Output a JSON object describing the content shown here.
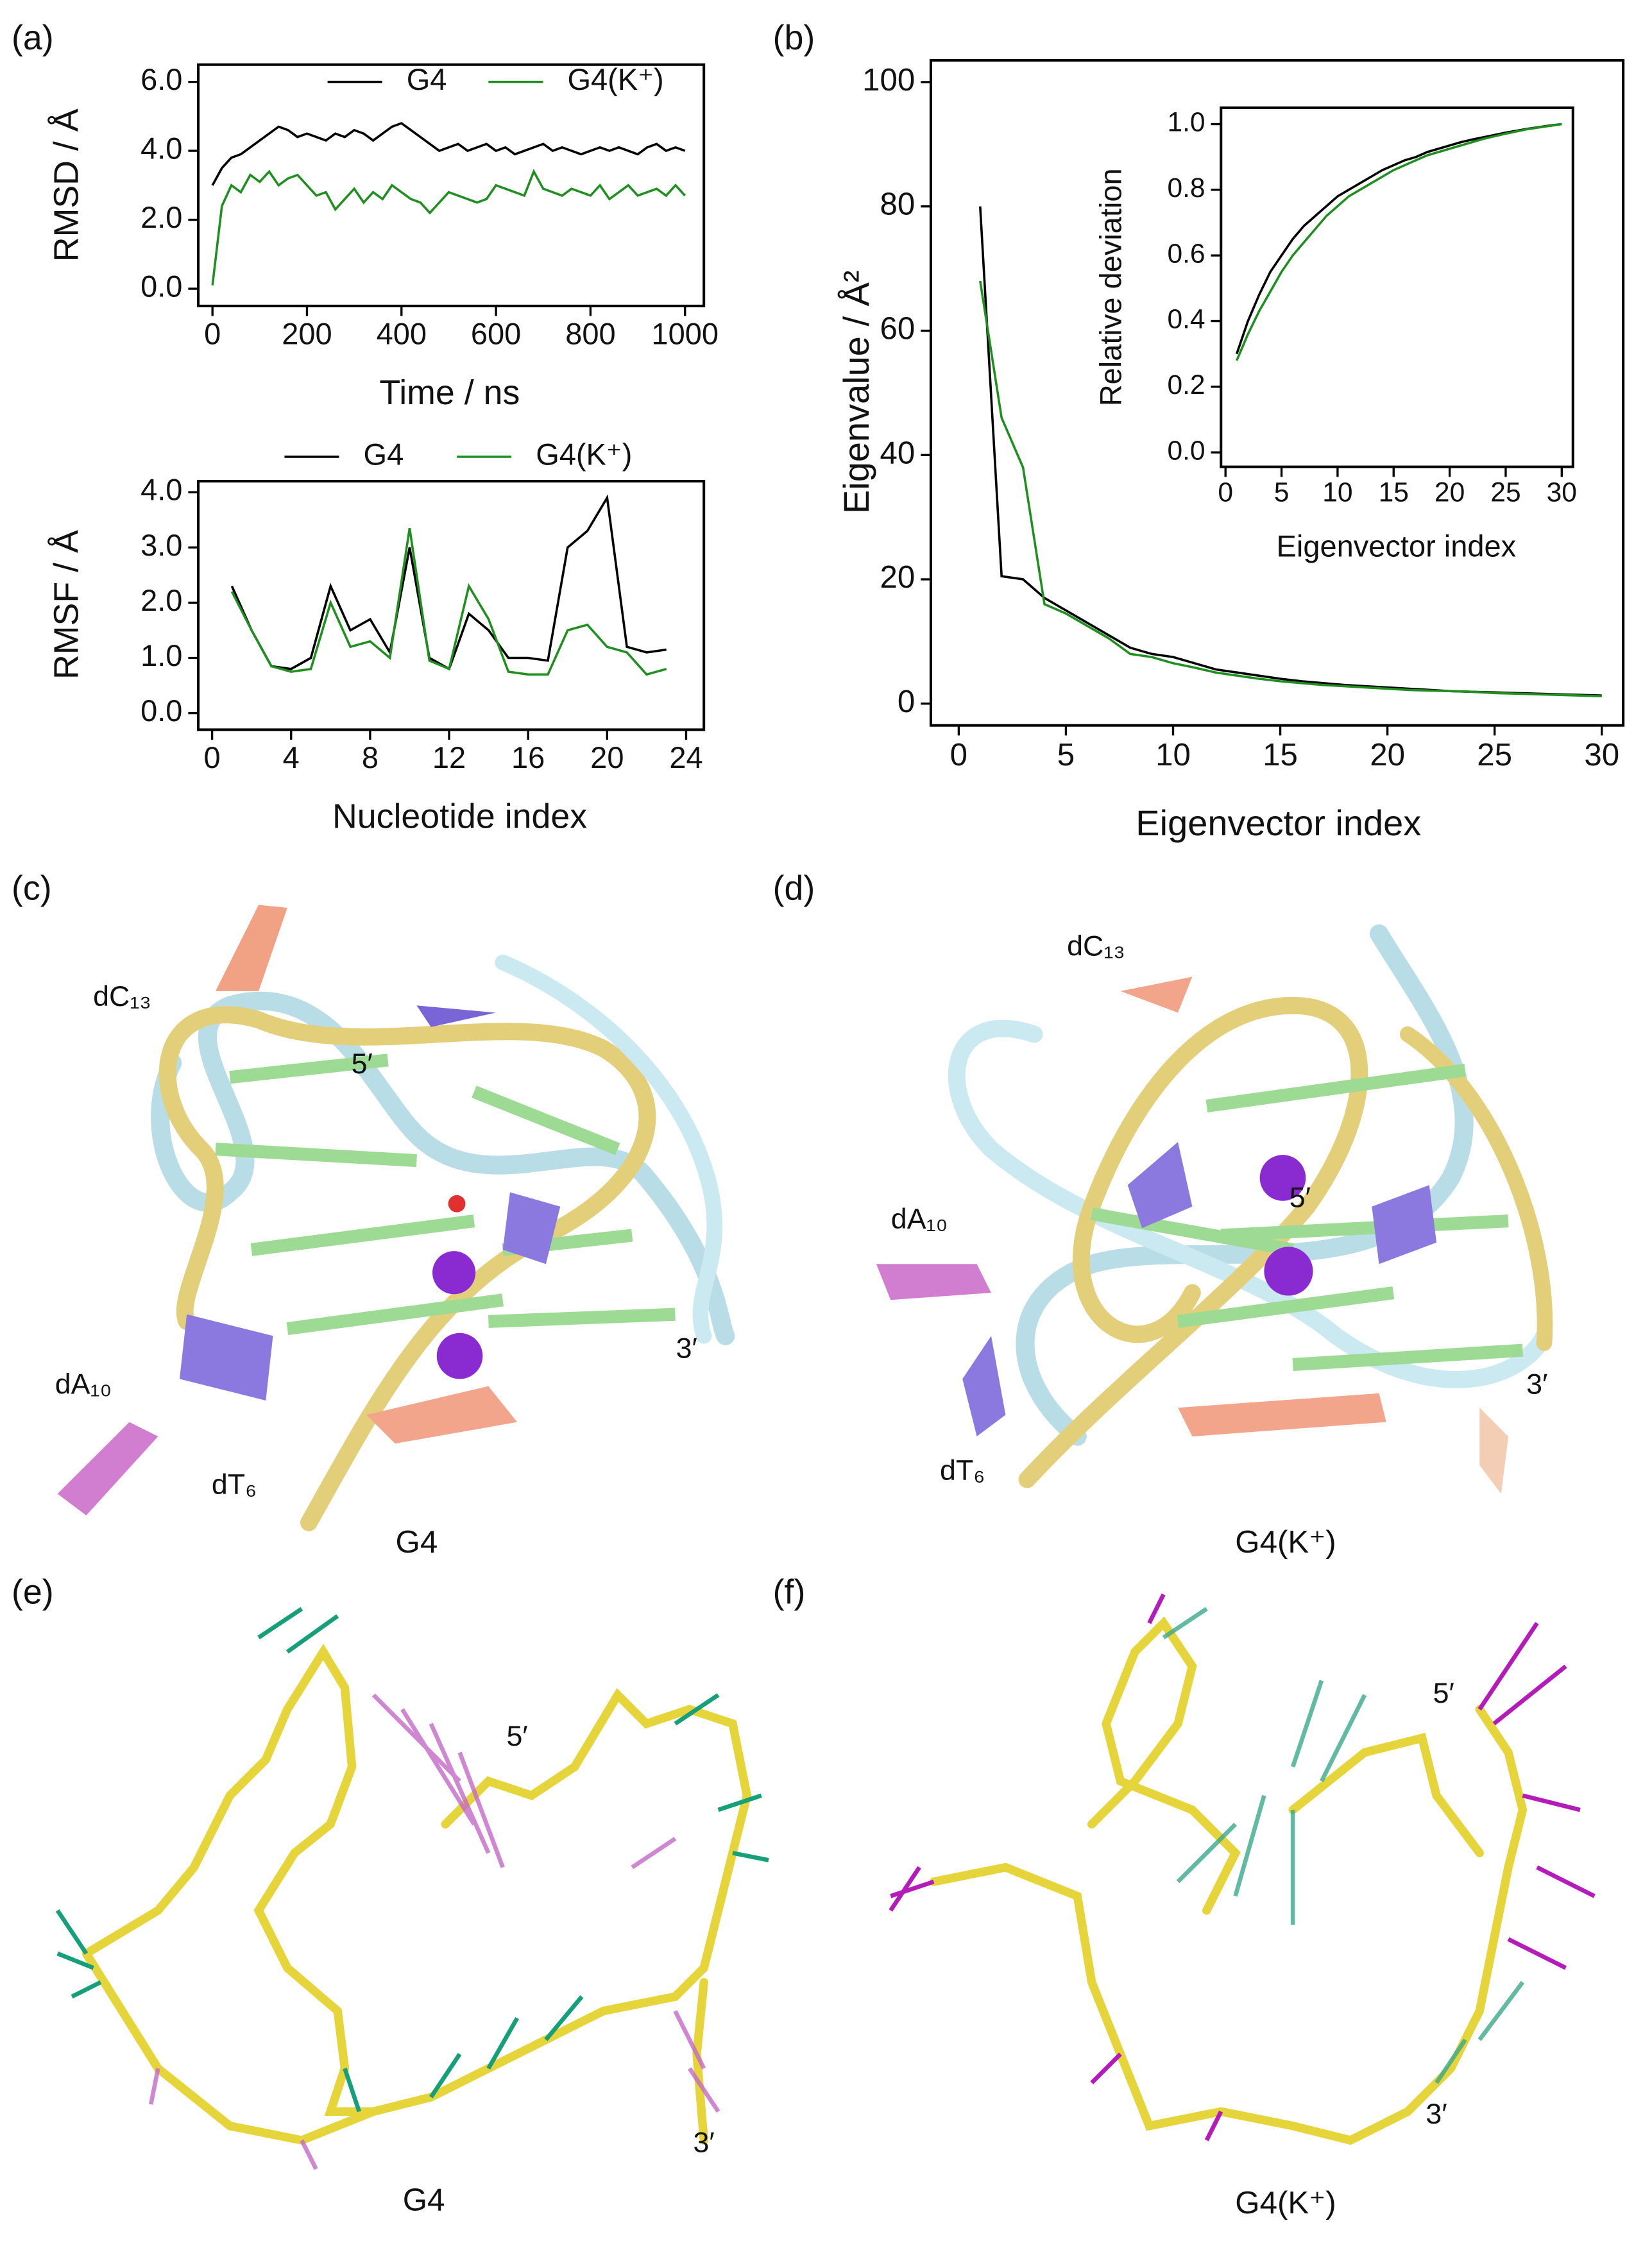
{
  "chart_data": [
    {
      "type": "line",
      "xlabel": "Time / ns",
      "ylabel": "RMSD / Å",
      "x": [
        0,
        20,
        40,
        60,
        80,
        100,
        120,
        140,
        160,
        180,
        200,
        220,
        240,
        260,
        280,
        300,
        320,
        340,
        360,
        380,
        400,
        420,
        440,
        460,
        480,
        500,
        520,
        540,
        560,
        580,
        600,
        620,
        640,
        660,
        680,
        700,
        720,
        740,
        760,
        780,
        800,
        820,
        840,
        860,
        880,
        900,
        920,
        940,
        960,
        980,
        1000
      ],
      "series": [
        {
          "name": "G4",
          "color": "#000000",
          "values": [
            3.0,
            3.5,
            3.8,
            3.9,
            4.1,
            4.3,
            4.5,
            4.7,
            4.6,
            4.4,
            4.5,
            4.4,
            4.3,
            4.5,
            4.4,
            4.6,
            4.5,
            4.3,
            4.5,
            4.7,
            4.8,
            4.6,
            4.4,
            4.2,
            4.0,
            4.1,
            4.2,
            4.0,
            4.1,
            4.2,
            4.0,
            4.1,
            3.9,
            4.0,
            4.1,
            4.2,
            4.0,
            4.1,
            4.0,
            3.9,
            4.0,
            4.1,
            4.0,
            4.1,
            4.0,
            3.9,
            4.1,
            4.2,
            4.0,
            4.1,
            4.0
          ]
        },
        {
          "name": "G4(K⁺)",
          "color": "#1f8f1f",
          "values": [
            0.1,
            2.4,
            3.0,
            2.8,
            3.3,
            3.1,
            3.4,
            3.0,
            3.2,
            3.3,
            3.0,
            2.7,
            2.8,
            2.3,
            2.6,
            2.9,
            2.5,
            2.8,
            2.6,
            3.0,
            2.8,
            2.6,
            2.5,
            2.2,
            2.5,
            2.8,
            2.7,
            2.6,
            2.5,
            2.6,
            3.0,
            2.9,
            2.8,
            2.7,
            3.4,
            2.9,
            2.8,
            2.7,
            2.9,
            2.8,
            2.7,
            3.0,
            2.6,
            2.8,
            3.0,
            2.7,
            2.8,
            2.9,
            2.7,
            3.0,
            2.7
          ]
        }
      ],
      "xlim": [
        -30,
        1040
      ],
      "xticks": [
        0,
        200,
        400,
        600,
        800,
        1000
      ],
      "ylim": [
        -0.5,
        6.5
      ],
      "yticks": [
        {
          "value": 0,
          "label": "0.0"
        },
        {
          "value": 2,
          "label": "2.0"
        },
        {
          "value": 4,
          "label": "4.0"
        },
        {
          "value": 6,
          "label": "6.0"
        }
      ]
    },
    {
      "type": "line",
      "xlabel": "Nucleotide index",
      "ylabel": "RMSF / Å",
      "x": [
        1,
        2,
        3,
        4,
        5,
        6,
        7,
        8,
        9,
        10,
        11,
        12,
        13,
        14,
        15,
        16,
        17,
        18,
        19,
        20,
        21,
        22,
        23
      ],
      "series": [
        {
          "name": "G4",
          "color": "#000000",
          "values": [
            2.3,
            1.5,
            0.85,
            0.8,
            1.0,
            2.3,
            1.5,
            1.7,
            1.1,
            3.0,
            1.0,
            0.8,
            1.8,
            1.5,
            1.0,
            1.0,
            0.95,
            3.0,
            3.3,
            3.9,
            1.2,
            1.1,
            1.15
          ]
        },
        {
          "name": "G4(K⁺)",
          "color": "#1f8f1f",
          "values": [
            2.2,
            1.5,
            0.85,
            0.75,
            0.8,
            2.0,
            1.2,
            1.3,
            1.0,
            3.35,
            0.95,
            0.8,
            2.3,
            1.7,
            0.75,
            0.7,
            0.7,
            1.5,
            1.6,
            1.2,
            1.1,
            0.7,
            0.8
          ]
        }
      ],
      "xlim": [
        -0.7,
        24.9
      ],
      "xticks": [
        0,
        4,
        8,
        12,
        16,
        20,
        24
      ],
      "ylim": [
        -0.3,
        4.2
      ],
      "yticks": [
        {
          "value": 0,
          "label": "0.0"
        },
        {
          "value": 1,
          "label": "1.0"
        },
        {
          "value": 2,
          "label": "2.0"
        },
        {
          "value": 3,
          "label": "3.0"
        },
        {
          "value": 4,
          "label": "4.0"
        }
      ]
    },
    {
      "type": "line",
      "xlabel": "Eigenvector index",
      "ylabel": "Eigenvalue / Å²",
      "x": [
        1,
        2,
        3,
        4,
        5,
        6,
        7,
        8,
        9,
        10,
        11,
        12,
        13,
        14,
        15,
        16,
        17,
        18,
        19,
        20,
        21,
        22,
        23,
        24,
        25,
        26,
        27,
        28,
        29,
        30
      ],
      "series": [
        {
          "name": "G4",
          "color": "#000000",
          "values": [
            80,
            20.5,
            20,
            17,
            15,
            13,
            11,
            9,
            8,
            7.5,
            6.5,
            5.5,
            5,
            4.5,
            4,
            3.6,
            3.3,
            3,
            2.8,
            2.6,
            2.4,
            2.2,
            2,
            1.9,
            1.8,
            1.7,
            1.6,
            1.5,
            1.4,
            1.3
          ]
        },
        {
          "name": "G4(K⁺)",
          "color": "#1f8f1f",
          "values": [
            68,
            46,
            38,
            16,
            14.5,
            12.5,
            10.5,
            8,
            7.5,
            6.5,
            5.8,
            5,
            4.5,
            4,
            3.6,
            3.3,
            3,
            2.8,
            2.6,
            2.4,
            2.2,
            2.1,
            2,
            1.9,
            1.7,
            1.6,
            1.5,
            1.4,
            1.3,
            1.2
          ]
        }
      ],
      "xlim": [
        -1.3,
        31
      ],
      "xticks": [
        0,
        5,
        10,
        15,
        20,
        25,
        30
      ],
      "ylim": [
        -3.5,
        103.5
      ],
      "yticks": [
        0,
        20,
        40,
        60,
        80,
        100
      ]
    },
    {
      "type": "line",
      "xlabel": "Eigenvector index",
      "ylabel": "Relative deviation",
      "x": [
        1,
        2,
        3,
        4,
        5,
        6,
        7,
        8,
        9,
        10,
        11,
        12,
        13,
        14,
        15,
        16,
        17,
        18,
        19,
        20,
        21,
        22,
        23,
        24,
        25,
        26,
        27,
        28,
        29,
        30
      ],
      "series": [
        {
          "name": "G4",
          "color": "#000000",
          "values": [
            0.3,
            0.4,
            0.48,
            0.55,
            0.6,
            0.65,
            0.69,
            0.72,
            0.75,
            0.78,
            0.8,
            0.82,
            0.84,
            0.86,
            0.875,
            0.89,
            0.9,
            0.915,
            0.925,
            0.935,
            0.945,
            0.953,
            0.96,
            0.967,
            0.974,
            0.98,
            0.986,
            0.991,
            0.996,
            1.0
          ]
        },
        {
          "name": "G4(K⁺)",
          "color": "#1f8f1f",
          "values": [
            0.28,
            0.36,
            0.43,
            0.49,
            0.55,
            0.6,
            0.64,
            0.68,
            0.72,
            0.75,
            0.78,
            0.8,
            0.82,
            0.84,
            0.86,
            0.875,
            0.89,
            0.905,
            0.915,
            0.925,
            0.935,
            0.945,
            0.955,
            0.963,
            0.971,
            0.978,
            0.985,
            0.99,
            0.995,
            1.0
          ]
        }
      ],
      "xlim": [
        -0.4,
        31
      ],
      "xticks": [
        0,
        5,
        10,
        15,
        20,
        25,
        30
      ],
      "ylim": [
        -0.044,
        1.05
      ],
      "yticks": [
        {
          "value": 0,
          "label": "0.0"
        },
        {
          "value": 0.2,
          "label": "0.2"
        },
        {
          "value": 0.4,
          "label": "0.4"
        },
        {
          "value": 0.6,
          "label": "0.6"
        },
        {
          "value": 0.8,
          "label": "0.8"
        },
        {
          "value": 1,
          "label": "1.0"
        }
      ]
    }
  ],
  "panel_labels": [
    "(a)",
    "(b)",
    "(c)",
    "(d)",
    "(e)",
    "(f)"
  ],
  "structures": [
    {
      "caption": "G4",
      "labels": [
        "dC₁₃",
        "5′",
        "dA₁₀",
        "dT₆",
        "3′"
      ]
    },
    {
      "caption": "G4(K⁺)",
      "labels": [
        "dC₁₃",
        "5′",
        "dA₁₀",
        "dT₆",
        "3′"
      ]
    },
    {
      "caption": "G4",
      "labels": [
        "5′",
        "3′"
      ]
    },
    {
      "caption": "G4(K⁺)",
      "labels": [
        "5′",
        "3′"
      ]
    }
  ]
}
